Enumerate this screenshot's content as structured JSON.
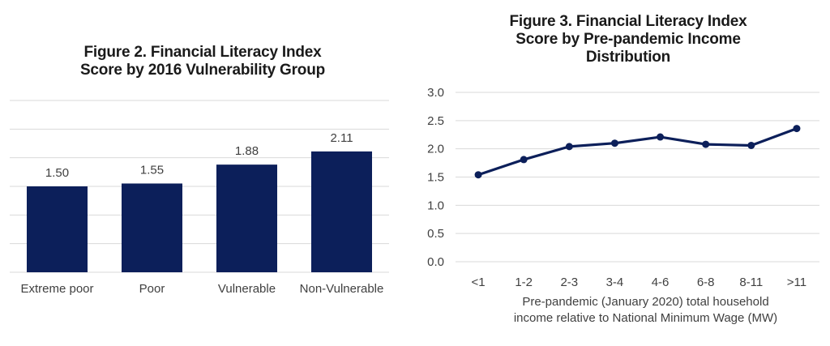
{
  "chart_data": [
    {
      "type": "bar",
      "title": "Figure 2. Financial Literacy Index Score by 2016 Vulnerability Group",
      "title_lines": [
        "Figure 2. Financial Literacy Index",
        "Score by 2016 Vulnerability Group"
      ],
      "categories": [
        "Extreme poor",
        "Poor",
        "Vulnerable",
        "Non-Vulnerable"
      ],
      "values": [
        1.5,
        1.55,
        1.88,
        2.11
      ],
      "data_labels": [
        "1.50",
        "1.55",
        "1.88",
        "2.11"
      ],
      "xlabel": "",
      "ylabel": "",
      "ylim": [
        0,
        3.0
      ],
      "gridline_step": 0.5,
      "y_axis_labels_shown": false,
      "grid": true,
      "color": "#0c1f5a"
    },
    {
      "type": "line",
      "title": "Figure 3. Financial Literacy Index Score by Pre-pandemic Income Distribution",
      "title_lines": [
        "Figure 3. Financial Literacy Index",
        "Score by Pre-pandemic Income",
        "Distribution"
      ],
      "categories": [
        "<1",
        "1-2",
        "2-3",
        "3-4",
        "4-6",
        "6-8",
        "8-11",
        ">11"
      ],
      "values": [
        1.54,
        1.81,
        2.04,
        2.1,
        2.21,
        2.08,
        2.06,
        2.36
      ],
      "xlabel": "Pre-pandemic (January 2020) total household income relative to National Minimum Wage (MW)",
      "xlabel_lines": [
        "Pre-pandemic  (January  2020)  total  household",
        "income relative to National Minimum Wage (MW)"
      ],
      "ylabel": "",
      "ylim": [
        0,
        3.0
      ],
      "yticks": [
        "0.0",
        "0.5",
        "1.0",
        "1.5",
        "2.0",
        "2.5",
        "3.0"
      ],
      "grid": true,
      "markers": true,
      "color": "#0c1f5a"
    }
  ]
}
